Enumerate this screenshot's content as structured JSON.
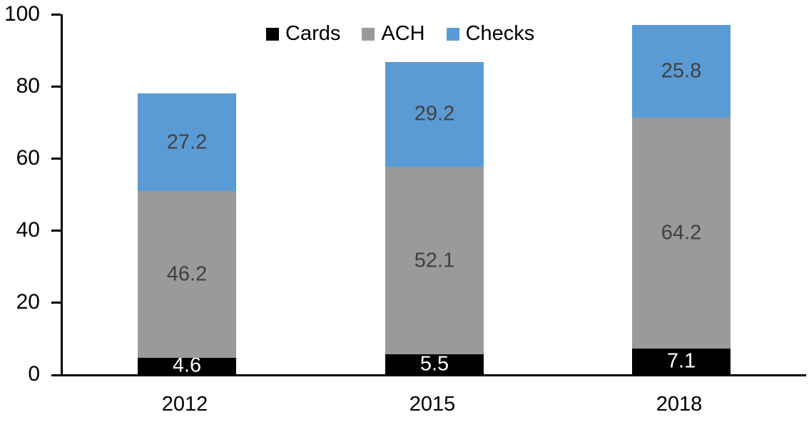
{
  "chart_data": {
    "type": "bar",
    "stacked": true,
    "title": "",
    "xlabel": "",
    "ylabel": "",
    "categories": [
      "2012",
      "2015",
      "2018"
    ],
    "series": [
      {
        "name": "Cards",
        "color": "#000000",
        "label_color": "#ffffff",
        "values": [
          4.6,
          5.5,
          7.1
        ]
      },
      {
        "name": "ACH",
        "color": "#9a9a9a",
        "label_color": "#404040",
        "values": [
          46.2,
          52.1,
          64.2
        ]
      },
      {
        "name": "Checks",
        "color": "#5b9bd5",
        "label_color": "#404040",
        "values": [
          27.2,
          29.2,
          25.8
        ]
      }
    ],
    "ylim": [
      0,
      100
    ],
    "y_ticks": [
      "0",
      "20",
      "40",
      "60",
      "80",
      "100"
    ],
    "grid": false,
    "legend_position": "top"
  }
}
